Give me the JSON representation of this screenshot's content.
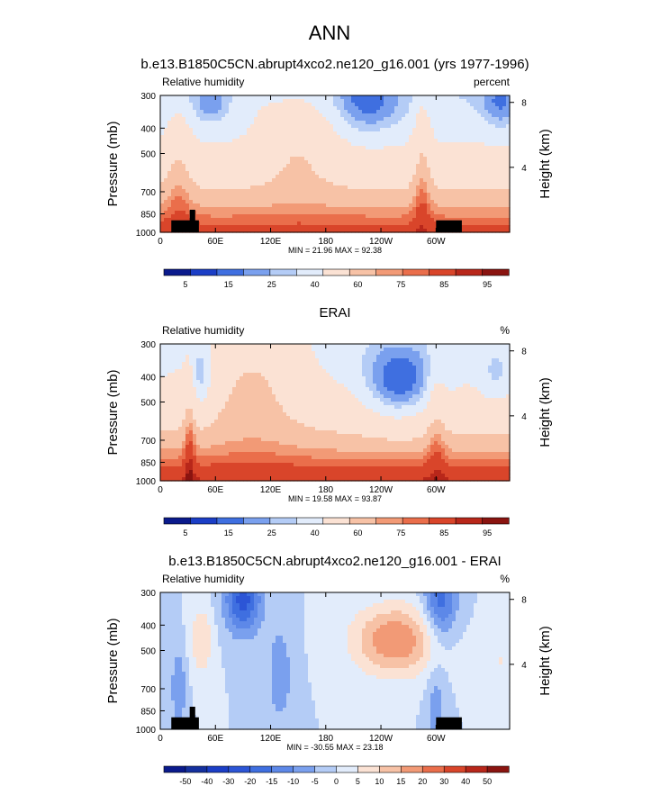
{
  "figure": {
    "title": "ANN",
    "colors": {
      "land": "#000000",
      "frame": "#000000"
    }
  },
  "chart_data": [
    {
      "type": "heatmap",
      "id": "model",
      "title": "b.e13.B1850C5CN.abrupt4xco2.ne120_g16.001 (yrs 1977-1996)",
      "left_label": "Relative humidity",
      "right_label": "percent",
      "ylabel": "Pressure (mb)",
      "y2label": "Height (km)",
      "x_ticks": [
        "0",
        "60E",
        "120E",
        "180",
        "120W",
        "60W"
      ],
      "x_tick_values": [
        0,
        60,
        120,
        180,
        240,
        300
      ],
      "xlim": [
        0,
        380
      ],
      "y_ticks": [
        "300",
        "400",
        "500",
        "700",
        "850",
        "1000"
      ],
      "y_tick_values": [
        300,
        400,
        500,
        700,
        850,
        1000
      ],
      "ylim": [
        1000,
        300
      ],
      "y2_ticks": [
        "4",
        "8"
      ],
      "stats": "MIN =  21.96  MAX =  92.38",
      "min": 21.96,
      "max": 92.38,
      "colorbar": {
        "labels": [
          "5",
          "15",
          "25",
          "40",
          "60",
          "75",
          "85",
          "95"
        ],
        "colors": [
          "#0a1a8c",
          "#1b3ec6",
          "#3f6fe0",
          "#7aa0ee",
          "#b4ccf6",
          "#e2ecfb",
          "#fbe2d4",
          "#f7c2a6",
          "#f29a76",
          "#ea6e4b",
          "#d9452a",
          "#b8271a",
          "#8a1410"
        ]
      }
    },
    {
      "type": "heatmap",
      "id": "obs",
      "title": "ERAI",
      "left_label": "Relative humidity",
      "right_label": "%",
      "ylabel": "Pressure (mb)",
      "y2label": "Height (km)",
      "x_ticks": [
        "0",
        "60E",
        "120E",
        "180",
        "120W",
        "60W"
      ],
      "x_tick_values": [
        0,
        60,
        120,
        180,
        240,
        300
      ],
      "xlim": [
        0,
        380
      ],
      "y_ticks": [
        "300",
        "400",
        "500",
        "700",
        "850",
        "1000"
      ],
      "y_tick_values": [
        300,
        400,
        500,
        700,
        850,
        1000
      ],
      "ylim": [
        1000,
        300
      ],
      "y2_ticks": [
        "4",
        "8"
      ],
      "stats": "MIN =  19.58  MAX =  93.87",
      "min": 19.58,
      "max": 93.87,
      "colorbar": {
        "labels": [
          "5",
          "15",
          "25",
          "40",
          "60",
          "75",
          "85",
          "95"
        ],
        "colors": [
          "#0a1a8c",
          "#1b3ec6",
          "#3f6fe0",
          "#7aa0ee",
          "#b4ccf6",
          "#e2ecfb",
          "#fbe2d4",
          "#f7c2a6",
          "#f29a76",
          "#ea6e4b",
          "#d9452a",
          "#b8271a",
          "#8a1410"
        ]
      }
    },
    {
      "type": "heatmap",
      "id": "diff",
      "title": "b.e13.B1850C5CN.abrupt4xco2.ne120_g16.001 - ERAI",
      "left_label": "Relative humidity",
      "right_label": "%",
      "ylabel": "Pressure (mb)",
      "y2label": "Height (km)",
      "x_ticks": [
        "0",
        "60E",
        "120E",
        "180",
        "120W",
        "60W"
      ],
      "x_tick_values": [
        0,
        60,
        120,
        180,
        240,
        300
      ],
      "xlim": [
        0,
        380
      ],
      "y_ticks": [
        "300",
        "400",
        "500",
        "700",
        "850",
        "1000"
      ],
      "y_tick_values": [
        300,
        400,
        500,
        700,
        850,
        1000
      ],
      "ylim": [
        1000,
        300
      ],
      "y2_ticks": [
        "4",
        "8"
      ],
      "stats": "MIN = -30.55  MAX =  23.18",
      "min": -30.55,
      "max": 23.18,
      "colorbar": {
        "labels": [
          "-50",
          "-40",
          "-30",
          "-20",
          "-15",
          "-10",
          "-5",
          "0",
          "5",
          "10",
          "15",
          "20",
          "30",
          "40",
          "50"
        ],
        "colors": [
          "#0a1a8c",
          "#14309e",
          "#1b3ec6",
          "#2c55d6",
          "#3f6fe0",
          "#5d88e8",
          "#7aa0ee",
          "#b4ccf6",
          "#e2ecfb",
          "#fbe2d4",
          "#f7c2a6",
          "#f29a76",
          "#ea6e4b",
          "#d9452a",
          "#b8271a",
          "#8a1410"
        ]
      }
    }
  ]
}
